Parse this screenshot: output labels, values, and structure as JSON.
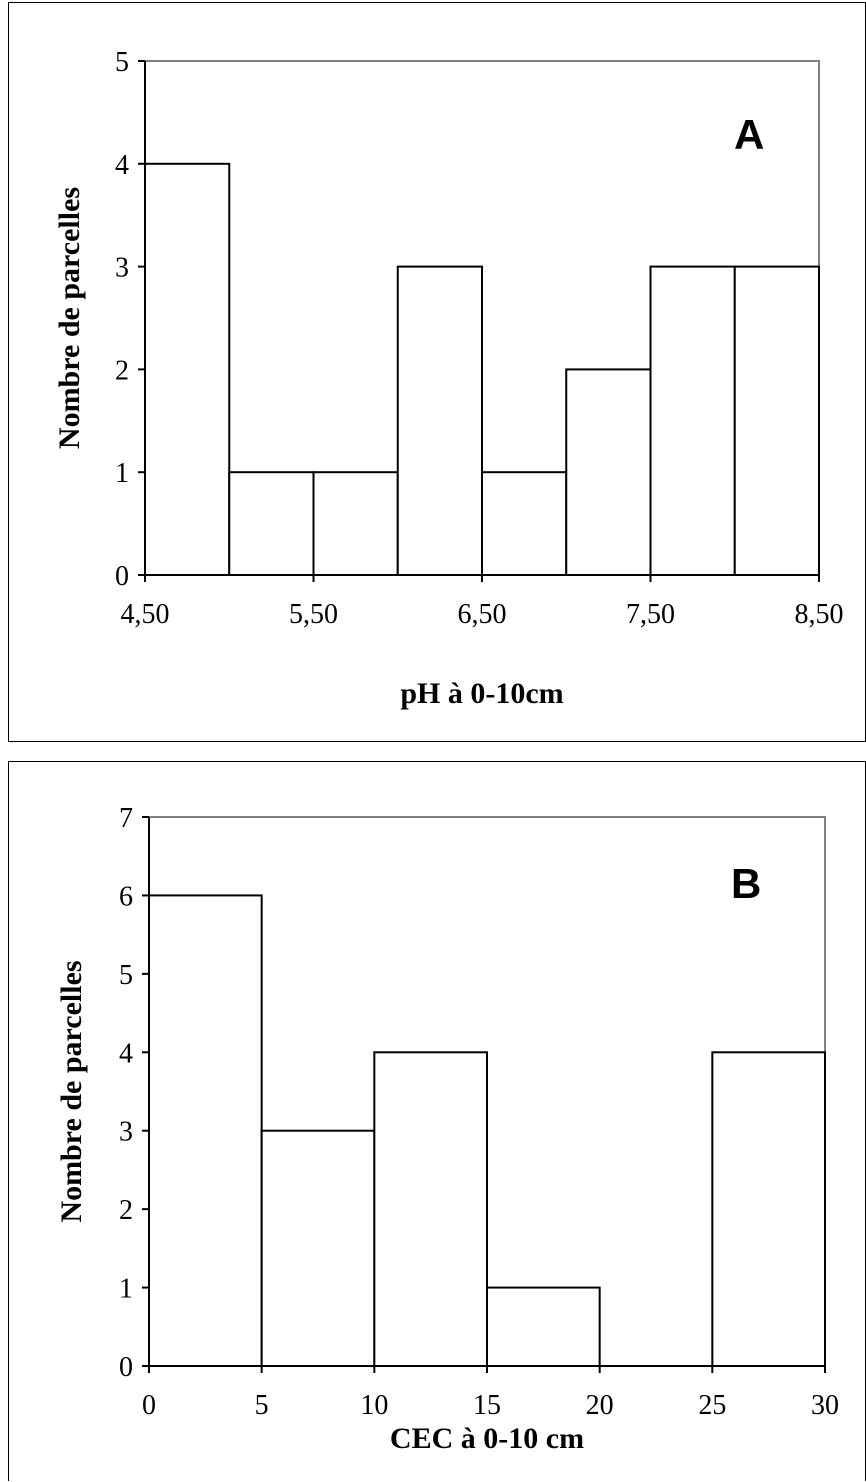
{
  "chart_data": [
    {
      "type": "bar",
      "panel_label": "A",
      "xlabel": "pH à 0-10cm",
      "ylabel": "Nombre de parcelles",
      "xlim": [
        4.5,
        8.5
      ],
      "ylim": [
        0,
        5
      ],
      "x_ticks": [
        4.5,
        5.5,
        6.5,
        7.5,
        8.5
      ],
      "x_tick_labels": [
        "4,50",
        "5,50",
        "6,50",
        "7,50",
        "8,50"
      ],
      "y_ticks": [
        0,
        1,
        2,
        3,
        4,
        5
      ],
      "y_tick_labels": [
        "0",
        "1",
        "2",
        "3",
        "4",
        "5"
      ],
      "bins": [
        {
          "from": 4.5,
          "to": 5.0,
          "value": 4
        },
        {
          "from": 5.0,
          "to": 5.5,
          "value": 1
        },
        {
          "from": 5.5,
          "to": 6.0,
          "value": 1
        },
        {
          "from": 6.0,
          "to": 6.5,
          "value": 3
        },
        {
          "from": 6.5,
          "to": 7.0,
          "value": 1
        },
        {
          "from": 7.0,
          "to": 7.5,
          "value": 2
        },
        {
          "from": 7.5,
          "to": 8.0,
          "value": 3
        },
        {
          "from": 8.0,
          "to": 8.5,
          "value": 3
        }
      ],
      "grid": false,
      "legend": "none"
    },
    {
      "type": "bar",
      "panel_label": "B",
      "xlabel": "CEC à 0-10 cm",
      "ylabel": "Nombre de parcelles",
      "xlim": [
        0,
        30
      ],
      "ylim": [
        0,
        7
      ],
      "x_ticks": [
        0,
        5,
        10,
        15,
        20,
        25,
        30
      ],
      "x_tick_labels": [
        "0",
        "5",
        "10",
        "15",
        "20",
        "25",
        "30"
      ],
      "y_ticks": [
        0,
        1,
        2,
        3,
        4,
        5,
        6,
        7
      ],
      "y_tick_labels": [
        "0",
        "1",
        "2",
        "3",
        "4",
        "5",
        "6",
        "7"
      ],
      "bins": [
        {
          "from": 0,
          "to": 5,
          "value": 6
        },
        {
          "from": 5,
          "to": 10,
          "value": 3
        },
        {
          "from": 10,
          "to": 15,
          "value": 4
        },
        {
          "from": 15,
          "to": 20,
          "value": 1
        },
        {
          "from": 20,
          "to": 25,
          "value": 0
        },
        {
          "from": 25,
          "to": 30,
          "value": 4
        }
      ],
      "grid": false,
      "legend": "none"
    }
  ]
}
